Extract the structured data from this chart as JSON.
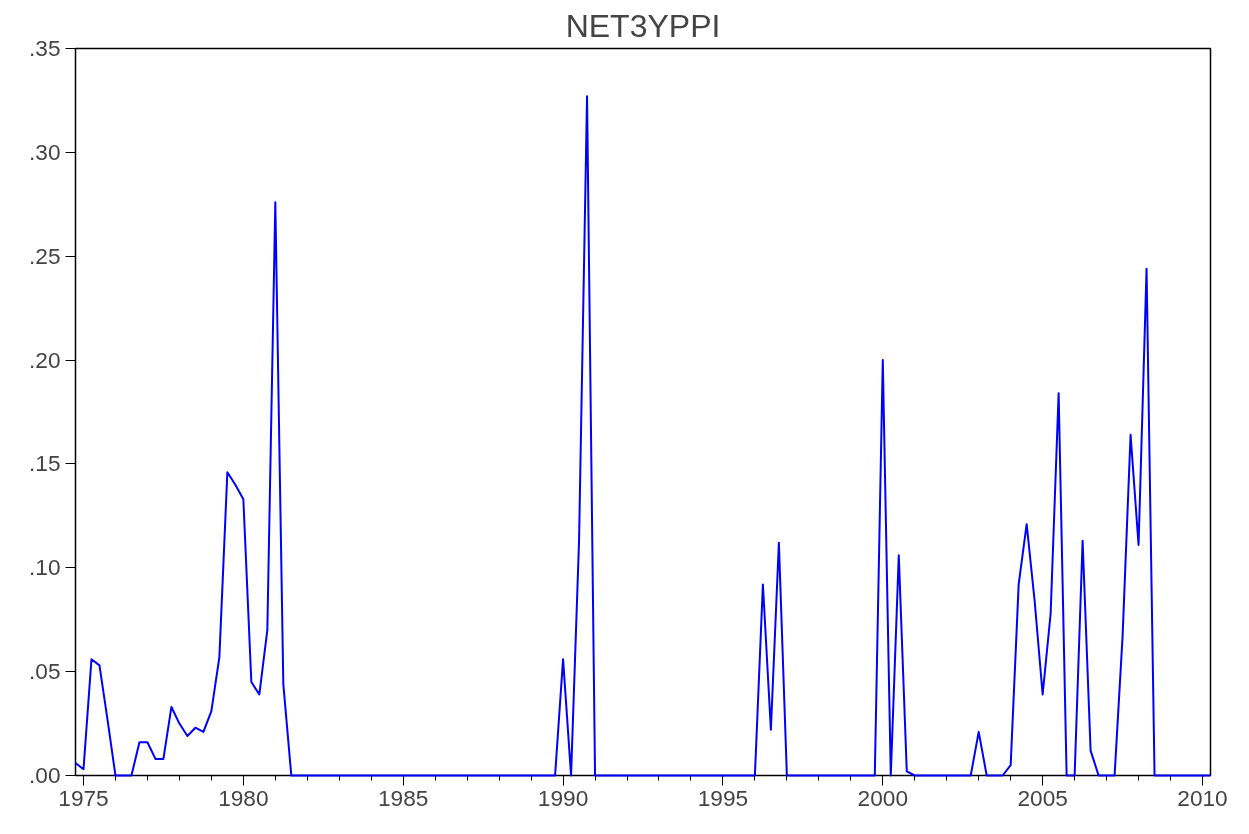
{
  "chart_data": {
    "type": "line",
    "title": "NET3YPPI",
    "x": [
      1974.75,
      1975,
      1975.25,
      1975.5,
      1975.75,
      1976,
      1976.25,
      1976.5,
      1976.75,
      1977,
      1977.25,
      1977.5,
      1977.75,
      1978,
      1978.25,
      1978.5,
      1978.75,
      1979,
      1979.25,
      1979.5,
      1979.75,
      1980,
      1980.25,
      1980.5,
      1980.75,
      1981,
      1981.25,
      1981.5,
      1981.75,
      1982,
      1982.25,
      1982.5,
      1982.75,
      1983,
      1983.25,
      1983.5,
      1983.75,
      1984,
      1984.25,
      1984.5,
      1984.75,
      1985,
      1985.25,
      1985.5,
      1985.75,
      1986,
      1986.25,
      1986.5,
      1986.75,
      1987,
      1987.25,
      1987.5,
      1987.75,
      1988,
      1988.25,
      1988.5,
      1988.75,
      1989,
      1989.25,
      1989.5,
      1989.75,
      1990,
      1990.25,
      1990.5,
      1990.75,
      1991,
      1991.25,
      1991.5,
      1991.75,
      1992,
      1992.25,
      1992.5,
      1992.75,
      1993,
      1993.25,
      1993.5,
      1993.75,
      1994,
      1994.25,
      1994.5,
      1994.75,
      1995,
      1995.25,
      1995.5,
      1995.75,
      1996,
      1996.25,
      1996.5,
      1996.75,
      1997,
      1997.25,
      1997.5,
      1997.75,
      1998,
      1998.25,
      1998.5,
      1998.75,
      1999,
      1999.25,
      1999.5,
      1999.75,
      2000,
      2000.25,
      2000.5,
      2000.75,
      2001,
      2001.25,
      2001.5,
      2001.75,
      2002,
      2002.25,
      2002.5,
      2002.75,
      2003,
      2003.25,
      2003.5,
      2003.75,
      2004,
      2004.25,
      2004.5,
      2004.75,
      2005,
      2005.25,
      2005.5,
      2005.75,
      2006,
      2006.25,
      2006.5,
      2006.75,
      2007,
      2007.25,
      2007.5,
      2007.75,
      2008,
      2008.25,
      2008.5,
      2008.75,
      2009,
      2009.25,
      2009.5,
      2009.75,
      2010,
      2010.25
    ],
    "series": [
      {
        "color": "#0000ff",
        "values": [
          0.006,
          0.003,
          0.056,
          0.053,
          0.027,
          0,
          0,
          0,
          0.016,
          0.016,
          0.008,
          0.008,
          0.033,
          0.025,
          0.019,
          0.023,
          0.021,
          0.031,
          0.057,
          0.146,
          0.14,
          0.133,
          0.045,
          0.039,
          0.07,
          0.276,
          0.044,
          0,
          0,
          0,
          0,
          0,
          0,
          0,
          0,
          0,
          0,
          0,
          0,
          0,
          0,
          0,
          0,
          0,
          0,
          0,
          0,
          0,
          0,
          0,
          0,
          0,
          0,
          0,
          0,
          0,
          0,
          0,
          0,
          0,
          0,
          0.056,
          0,
          0.113,
          0.327,
          0,
          0,
          0,
          0,
          0,
          0,
          0,
          0,
          0,
          0,
          0,
          0,
          0,
          0,
          0,
          0,
          0,
          0,
          0,
          0,
          0,
          0.092,
          0.022,
          0.112,
          0,
          0,
          0,
          0,
          0,
          0,
          0,
          0,
          0,
          0,
          0,
          0,
          0.2,
          0,
          0.106,
          0.002,
          0,
          0,
          0,
          0,
          0,
          0,
          0,
          0,
          0.021,
          0,
          0,
          0,
          0.005,
          0.092,
          0.121,
          0.084,
          0.039,
          0.078,
          0.184,
          0,
          0,
          0.113,
          0.012,
          0,
          0,
          0,
          0.067,
          0.164,
          0.111,
          0.244,
          0,
          0,
          0,
          0,
          0,
          0,
          0,
          0
        ]
      }
    ],
    "xlim": [
      1974.75,
      2010.25
    ],
    "xticks": [
      1975,
      {
        "value": 1976,
        "label": null
      },
      {
        "value": 1977,
        "label": null
      },
      {
        "value": 1978,
        "label": null
      },
      {
        "value": 1979,
        "label": null
      },
      1980,
      {
        "value": 1981,
        "label": null
      },
      {
        "value": 1982,
        "label": null
      },
      {
        "value": 1983,
        "label": null
      },
      {
        "value": 1984,
        "label": null
      },
      1985,
      {
        "value": 1986,
        "label": null
      },
      {
        "value": 1987,
        "label": null
      },
      {
        "value": 1988,
        "label": null
      },
      {
        "value": 1989,
        "label": null
      },
      1990,
      {
        "value": 1991,
        "label": null
      },
      {
        "value": 1992,
        "label": null
      },
      {
        "value": 1993,
        "label": null
      },
      {
        "value": 1994,
        "label": null
      },
      1995,
      {
        "value": 1996,
        "label": null
      },
      {
        "value": 1997,
        "label": null
      },
      {
        "value": 1998,
        "label": null
      },
      {
        "value": 1999,
        "label": null
      },
      2000,
      {
        "value": 2001,
        "label": null
      },
      {
        "value": 2002,
        "label": null
      },
      {
        "value": 2003,
        "label": null
      },
      {
        "value": 2004,
        "label": null
      },
      2005,
      {
        "value": 2006,
        "label": null
      },
      {
        "value": 2007,
        "label": null
      },
      {
        "value": 2008,
        "label": null
      },
      {
        "value": 2009,
        "label": null
      },
      2010
    ],
    "ylim": [
      0,
      0.35
    ],
    "yticks": [
      {
        "value": 0,
        "label": ".00"
      },
      {
        "value": 0.05,
        "label": ".05"
      },
      {
        "value": 0.1,
        "label": ".10"
      },
      {
        "value": 0.15,
        "label": ".15"
      },
      {
        "value": 0.2,
        "label": ".20"
      },
      {
        "value": 0.25,
        "label": ".25"
      },
      {
        "value": 0.3,
        "label": ".30"
      },
      {
        "value": 0.35,
        "label": ".35"
      }
    ],
    "grid": false,
    "line_style": "solid",
    "marker": "none"
  }
}
